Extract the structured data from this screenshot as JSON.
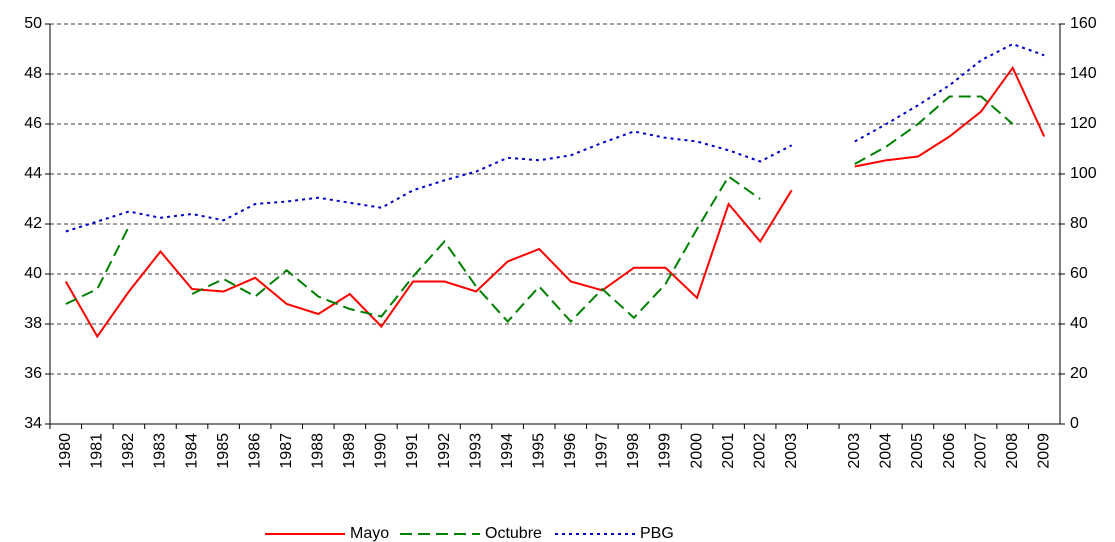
{
  "chart_data": {
    "type": "line",
    "categories": [
      "1980",
      "1981",
      "1982",
      "1983",
      "1984",
      "1985",
      "1986",
      "1987",
      "1988",
      "1989",
      "1990",
      "1991",
      "1992",
      "1993",
      "1994",
      "1995",
      "1996",
      "1997",
      "1998",
      "1999",
      "2000",
      "2001",
      "2002",
      "2003",
      null,
      "2003",
      "2004",
      "2005",
      "2006",
      "2007",
      "2008",
      "2009"
    ],
    "series": [
      {
        "name": "Mayo",
        "color": "#ff0000",
        "dash": "solid",
        "values": [
          39.7,
          37.5,
          39.3,
          40.9,
          39.4,
          39.3,
          39.85,
          38.8,
          38.4,
          39.2,
          37.9,
          39.7,
          39.7,
          39.3,
          40.5,
          41.0,
          39.7,
          39.35,
          40.25,
          40.25,
          39.05,
          42.8,
          41.3,
          43.35,
          null,
          44.3,
          44.55,
          44.7,
          45.5,
          46.5,
          48.25,
          45.5
        ]
      },
      {
        "name": "Octubre",
        "color": "#008000",
        "dash": "dashed",
        "values": [
          38.8,
          39.4,
          41.9,
          null,
          39.2,
          39.8,
          39.1,
          40.15,
          39.1,
          38.6,
          38.3,
          39.9,
          41.3,
          39.5,
          38.1,
          39.5,
          38.1,
          39.4,
          38.25,
          39.6,
          41.8,
          43.9,
          43.0,
          null,
          null,
          44.4,
          45.1,
          46.0,
          47.1,
          47.1,
          46.0,
          null
        ]
      },
      {
        "name": "PBG",
        "color": "#0000cc",
        "dash": "dotted",
        "axis": "y2",
        "values": [
          77,
          81,
          85,
          82.5,
          84,
          81.5,
          88,
          89,
          90.5,
          88.5,
          86.5,
          93.5,
          97.5,
          101,
          106.5,
          105.5,
          107.5,
          112.5,
          117,
          114.5,
          113,
          109.5,
          105,
          111.5,
          null,
          113,
          120,
          127.5,
          135.5,
          145.5,
          152,
          147.5
        ]
      }
    ],
    "ylim": [
      34,
      50
    ],
    "yticks": [
      34,
      36,
      38,
      40,
      42,
      44,
      46,
      48,
      50
    ],
    "y2lim": [
      0,
      160
    ],
    "y2ticks": [
      0,
      20,
      40,
      60,
      80,
      100,
      120,
      140,
      160
    ],
    "grid": true,
    "legend": "bottom"
  }
}
